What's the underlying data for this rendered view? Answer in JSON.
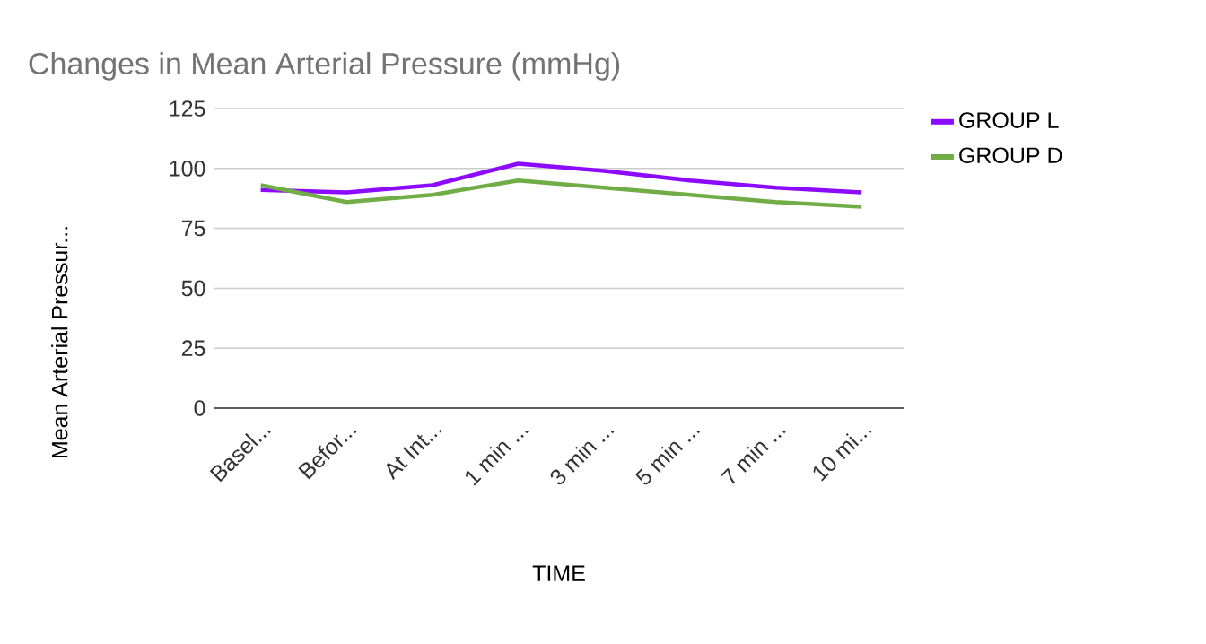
{
  "chart_data": {
    "type": "line",
    "title": "Changes in Mean Arterial Pressure (mmHg)",
    "xlabel": "TIME",
    "ylabel": "Mean Arterial Pressur...",
    "categories": [
      "Basel...",
      "Befor...",
      "At Int...",
      "1 min ...",
      "3 min ...",
      "5 min ...",
      "7 min ...",
      "10 mi..."
    ],
    "series": [
      {
        "name": "GROUP L",
        "color": "#8c0aff",
        "values": [
          91,
          90,
          93,
          102,
          99,
          95,
          92,
          90
        ]
      },
      {
        "name": "GROUP D",
        "color": "#70ad47",
        "values": [
          93,
          86,
          89,
          95,
          92,
          89,
          86,
          84
        ]
      }
    ],
    "ylim": [
      0,
      125
    ],
    "yticks": [
      0,
      25,
      50,
      75,
      100,
      125
    ],
    "grid": "y",
    "legend": "top right",
    "marker": "none",
    "line_style": "solid"
  }
}
